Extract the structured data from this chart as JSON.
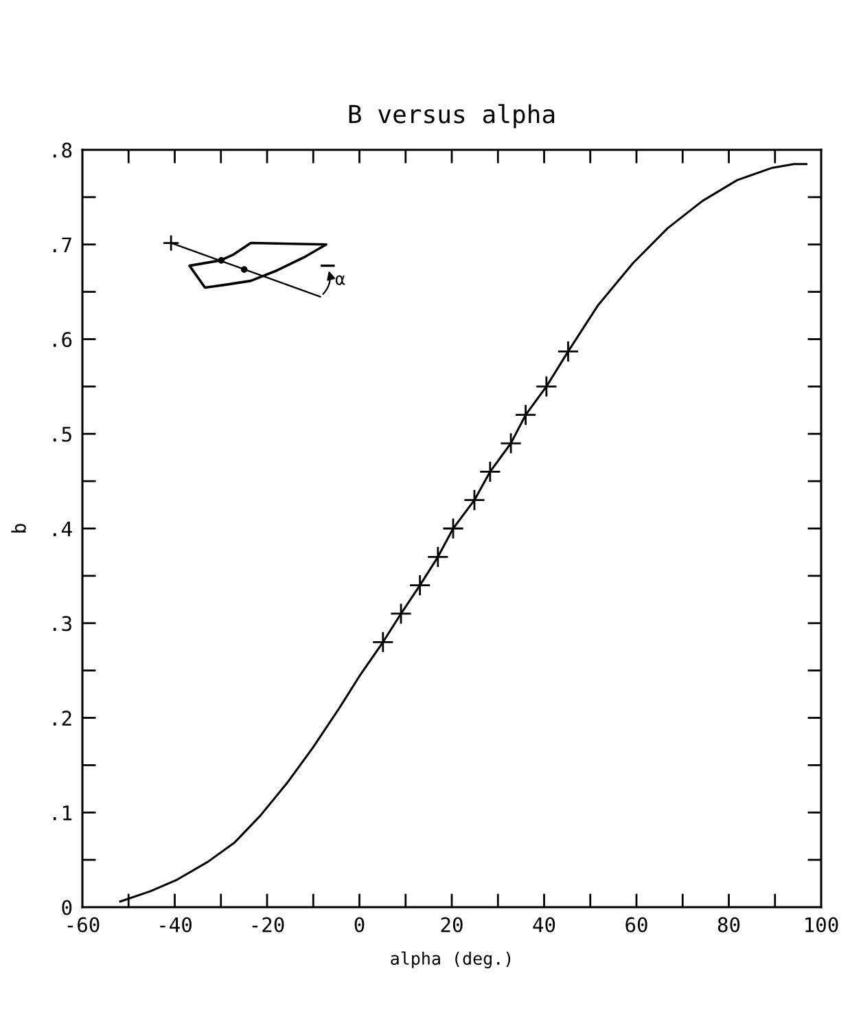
{
  "chart_data": {
    "type": "line",
    "title": "B versus alpha",
    "xlabel": "alpha (deg.)",
    "ylabel": "b",
    "annotations": [
      "α"
    ],
    "series": [
      {
        "color": "#000000",
        "marker": "none",
        "line_style": "solid",
        "x": [
          -51.8,
          -45.2,
          -39.5,
          -32.8,
          -27.1,
          -21.4,
          -15.7,
          -10,
          -4.4,
          0.4,
          5.1,
          9,
          13.1,
          17,
          20.3,
          24.9,
          28.3,
          32.8,
          36,
          40.5,
          45.2,
          51.7,
          59.2,
          66.7,
          74.3,
          81.8,
          89.4,
          94.1,
          96.8
        ],
        "values": [
          0.006,
          0.017,
          0.029,
          0.048,
          0.068,
          0.097,
          0.131,
          0.169,
          0.21,
          0.247,
          0.28,
          0.31,
          0.34,
          0.37,
          0.4,
          0.43,
          0.46,
          0.49,
          0.52,
          0.55,
          0.587,
          0.636,
          0.68,
          0.717,
          0.746,
          0.768,
          0.781,
          0.785,
          0.785
        ]
      },
      {
        "type": "scatter",
        "color": "#000000",
        "marker": "cross",
        "x": [
          5.1,
          9,
          13.1,
          17,
          20.3,
          24.9,
          28.3,
          32.8,
          36,
          40.5,
          45.2
        ],
        "values": [
          0.28,
          0.31,
          0.34,
          0.37,
          0.4,
          0.43,
          0.46,
          0.49,
          0.52,
          0.55,
          0.587
        ]
      }
    ],
    "xlim": [
      -60,
      100
    ],
    "ylim": [
      0,
      0.8
    ],
    "xticks": [
      -60,
      {
        "value": -50,
        "label": null
      },
      -40,
      {
        "value": -30,
        "label": null
      },
      -20,
      {
        "value": -10,
        "label": null
      },
      0,
      {
        "value": 10,
        "label": null
      },
      20,
      {
        "value": 30,
        "label": null
      },
      40,
      {
        "value": 50,
        "label": null
      },
      60,
      {
        "value": 70,
        "label": null
      },
      80,
      {
        "value": 90,
        "label": null
      },
      100
    ],
    "yticks": [
      0,
      {
        "value": 0.05,
        "label": null
      },
      {
        "value": 0.1,
        "label": ".1"
      },
      {
        "value": 0.15,
        "label": null
      },
      {
        "value": 0.2,
        "label": ".2"
      },
      {
        "value": 0.25,
        "label": null
      },
      {
        "value": 0.3,
        "label": ".3"
      },
      {
        "value": 0.35,
        "label": null
      },
      {
        "value": 0.4,
        "label": ".4"
      },
      {
        "value": 0.45,
        "label": null
      },
      {
        "value": 0.5,
        "label": ".5"
      },
      {
        "value": 0.55,
        "label": null
      },
      {
        "value": 0.6,
        "label": ".6"
      },
      {
        "value": 0.65,
        "label": null
      },
      {
        "value": 0.7,
        "label": ".7"
      },
      {
        "value": 0.75,
        "label": null
      },
      {
        "value": 0.8,
        "label": ".8"
      }
    ],
    "grid": false
  }
}
